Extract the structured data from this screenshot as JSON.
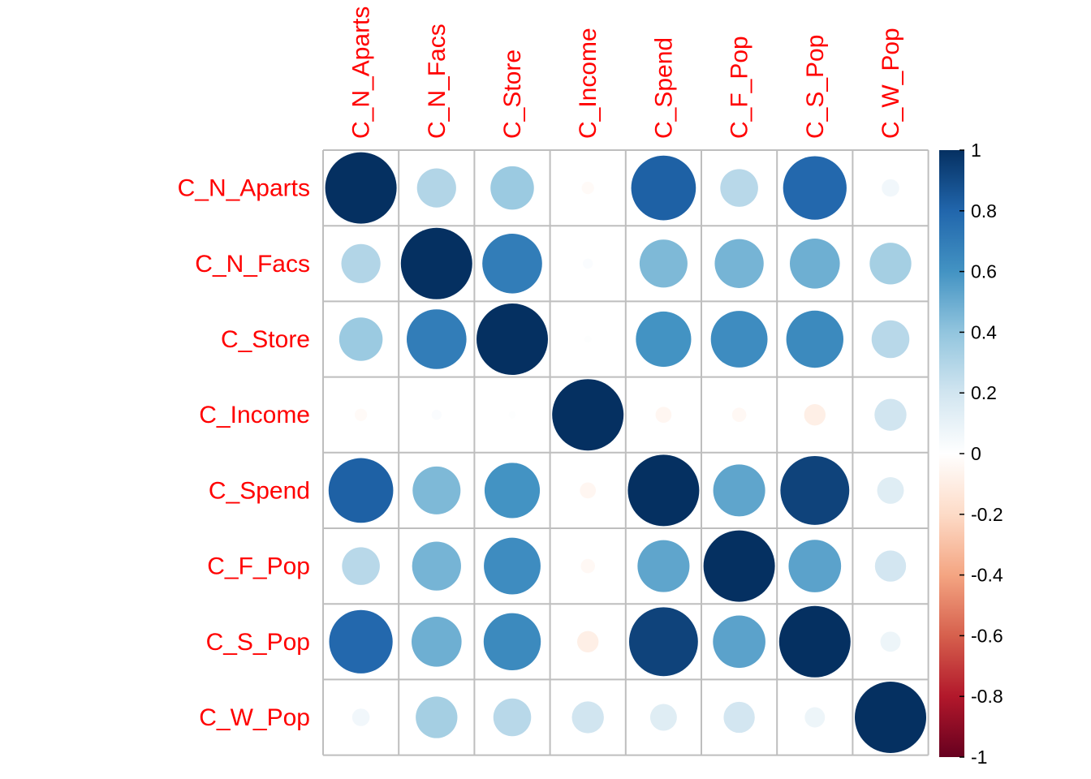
{
  "chart_data": {
    "type": "heatmap",
    "style": "corrplot-circle",
    "variables": [
      "C_N_Aparts",
      "C_N_Facs",
      "C_Store",
      "C_Income",
      "C_Spend",
      "C_F_Pop",
      "C_S_Pop",
      "C_W_Pop"
    ],
    "matrix": [
      [
        1.0,
        0.3,
        0.37,
        -0.03,
        0.82,
        0.28,
        0.79,
        0.06
      ],
      [
        0.3,
        1.0,
        0.7,
        0.02,
        0.45,
        0.47,
        0.49,
        0.34
      ],
      [
        0.37,
        0.7,
        1.0,
        0.01,
        0.6,
        0.63,
        0.64,
        0.28
      ],
      [
        -0.03,
        0.02,
        0.01,
        1.0,
        -0.05,
        -0.04,
        -0.09,
        0.2
      ],
      [
        0.82,
        0.45,
        0.6,
        -0.05,
        1.0,
        0.53,
        0.93,
        0.14
      ],
      [
        0.28,
        0.47,
        0.63,
        -0.04,
        0.53,
        1.0,
        0.54,
        0.19
      ],
      [
        0.79,
        0.49,
        0.64,
        -0.09,
        0.93,
        0.54,
        1.0,
        0.08
      ],
      [
        0.06,
        0.34,
        0.28,
        0.2,
        0.14,
        0.19,
        0.08,
        1.0
      ]
    ],
    "label_color": "#FF0000",
    "legend": {
      "placement": "right",
      "ticks": [
        "1",
        "0.8",
        "0.6",
        "0.4",
        "0.2",
        "0",
        "-0.2",
        "-0.4",
        "-0.6",
        "-0.8",
        "-1"
      ],
      "range": [
        -1,
        1
      ]
    },
    "palette": [
      "#67001F",
      "#B2182B",
      "#D6604D",
      "#F4A582",
      "#FDDBC7",
      "#FFFFFF",
      "#D1E5F0",
      "#92C5DE",
      "#4393C3",
      "#2166AC",
      "#053061"
    ]
  }
}
